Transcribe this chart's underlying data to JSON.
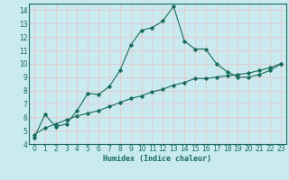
{
  "title": "",
  "xlabel": "Humidex (Indice chaleur)",
  "ylabel": "",
  "bg_color": "#c8eaf0",
  "grid_color": "#e8c8c8",
  "line_color": "#1a6b5a",
  "xlim": [
    -0.5,
    23.5
  ],
  "ylim": [
    4,
    14.5
  ],
  "yticks": [
    4,
    5,
    6,
    7,
    8,
    9,
    10,
    11,
    12,
    13,
    14
  ],
  "xticks": [
    0,
    1,
    2,
    3,
    4,
    5,
    6,
    7,
    8,
    9,
    10,
    11,
    12,
    13,
    14,
    15,
    16,
    17,
    18,
    19,
    20,
    21,
    22,
    23
  ],
  "curve1_x": [
    0,
    1,
    2,
    3,
    4,
    5,
    6,
    7,
    8,
    9,
    10,
    11,
    12,
    13,
    14,
    15,
    16,
    17,
    18,
    19,
    20,
    21,
    22,
    23
  ],
  "curve1_y": [
    4.5,
    6.2,
    5.3,
    5.5,
    6.5,
    7.8,
    7.7,
    8.3,
    9.5,
    11.4,
    12.5,
    12.7,
    13.2,
    14.3,
    11.7,
    11.1,
    11.1,
    10.0,
    9.4,
    9.0,
    9.0,
    9.2,
    9.5,
    10.0
  ],
  "curve2_x": [
    0,
    1,
    2,
    3,
    4,
    5,
    6,
    7,
    8,
    9,
    10,
    11,
    12,
    13,
    14,
    15,
    16,
    17,
    18,
    19,
    20,
    21,
    22,
    23
  ],
  "curve2_y": [
    4.7,
    5.2,
    5.5,
    5.8,
    6.1,
    6.3,
    6.5,
    6.8,
    7.1,
    7.4,
    7.6,
    7.9,
    8.1,
    8.4,
    8.6,
    8.9,
    8.9,
    9.0,
    9.1,
    9.2,
    9.3,
    9.5,
    9.7,
    10.0
  ],
  "label_fontsize": 5.5,
  "xlabel_fontsize": 6.0
}
